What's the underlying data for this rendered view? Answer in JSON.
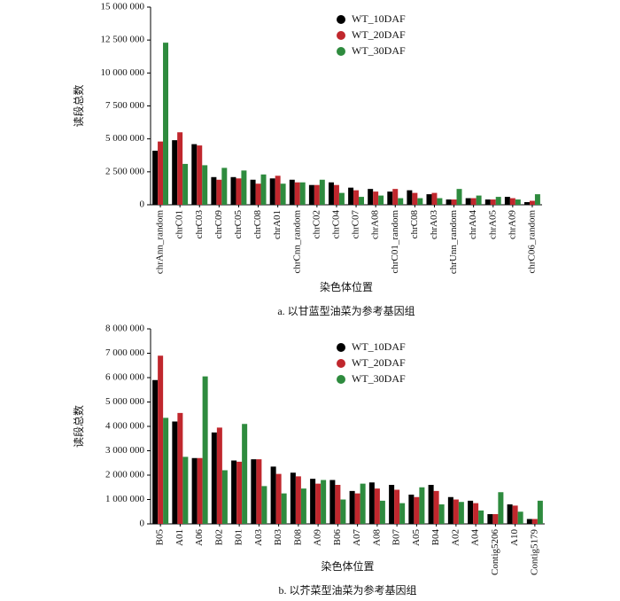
{
  "chart_data": [
    {
      "type": "bar",
      "ylabel": "读段总数",
      "xlabel": "染色体位置",
      "caption": "a. 以甘蓝型油菜为参考基因组",
      "categories": [
        "chrAnn_random",
        "chrC01",
        "chrC03",
        "chrC09",
        "chrC05",
        "chrC08",
        "chrA01",
        "chrCnn_random",
        "chrC02",
        "chrC04",
        "chrC07",
        "chrA08",
        "chrC01_random",
        "chrC08",
        "chrA03",
        "chrUnn_random",
        "chrA04",
        "chrA05",
        "chrA09",
        "chrC06_random"
      ],
      "series": [
        {
          "name": "WT_10DAF",
          "color": "#000000",
          "values": [
            4100000,
            4900000,
            4600000,
            2100000,
            2100000,
            1900000,
            2000000,
            1900000,
            1500000,
            1700000,
            1300000,
            1200000,
            1000000,
            1100000,
            800000,
            400000,
            500000,
            400000,
            600000,
            200000
          ]
        },
        {
          "name": "WT_20DAF",
          "color": "#c0272d",
          "values": [
            4800000,
            5500000,
            4500000,
            1900000,
            2000000,
            1600000,
            2200000,
            1700000,
            1500000,
            1500000,
            1100000,
            1000000,
            1200000,
            900000,
            900000,
            400000,
            500000,
            400000,
            500000,
            300000
          ]
        },
        {
          "name": "WT_30DAF",
          "color": "#2e8b3e",
          "values": [
            12300000,
            3100000,
            3000000,
            2800000,
            2600000,
            2300000,
            1600000,
            1700000,
            1900000,
            900000,
            600000,
            700000,
            500000,
            500000,
            500000,
            1200000,
            700000,
            600000,
            400000,
            800000
          ]
        }
      ],
      "ylim": [
        0,
        15000000
      ],
      "yticks": [
        0,
        {
          "value": 2500000,
          "label": "2 500 000"
        },
        {
          "value": 5000000,
          "label": "5 000 000"
        },
        {
          "value": 7500000,
          "label": "7 500 000"
        },
        {
          "value": 10000000,
          "label": "10 000 000"
        },
        {
          "value": 12500000,
          "label": "12 500 000"
        },
        {
          "value": 15000000,
          "label": "15 000 000"
        }
      ],
      "legend": "upper right"
    },
    {
      "type": "bar",
      "ylabel": "读段总数",
      "xlabel": "染色体位置",
      "caption": "b. 以芥菜型油菜为参考基因组",
      "categories": [
        "B05",
        "A01",
        "A06",
        "B02",
        "B01",
        "A03",
        "B03",
        "B08",
        "A09",
        "B06",
        "A07",
        "A08",
        "B07",
        "A05",
        "B04",
        "A02",
        "A04",
        "Contig5206",
        "A10",
        "Contig5179"
      ],
      "series": [
        {
          "name": "WT_10DAF",
          "color": "#000000",
          "values": [
            5900000,
            4200000,
            2700000,
            3750000,
            2600000,
            2650000,
            2350000,
            2100000,
            1850000,
            1800000,
            1350000,
            1700000,
            1600000,
            1200000,
            1600000,
            1100000,
            950000,
            400000,
            800000,
            200000
          ]
        },
        {
          "name": "WT_20DAF",
          "color": "#c0272d",
          "values": [
            6900000,
            4550000,
            2700000,
            3950000,
            2550000,
            2650000,
            2050000,
            1950000,
            1650000,
            1600000,
            1250000,
            1450000,
            1400000,
            1100000,
            1350000,
            1000000,
            850000,
            400000,
            750000,
            200000
          ]
        },
        {
          "name": "WT_30DAF",
          "color": "#2e8b3e",
          "values": [
            4350000,
            2750000,
            6050000,
            2200000,
            4100000,
            1550000,
            1250000,
            1450000,
            1800000,
            1000000,
            1650000,
            950000,
            850000,
            1500000,
            800000,
            900000,
            550000,
            1300000,
            500000,
            950000
          ]
        }
      ],
      "ylim": [
        0,
        8000000
      ],
      "yticks": [
        0,
        {
          "value": 1000000,
          "label": "1 000 000"
        },
        {
          "value": 2000000,
          "label": "2 000 000"
        },
        {
          "value": 3000000,
          "label": "3 000 000"
        },
        {
          "value": 4000000,
          "label": "4 000 000"
        },
        {
          "value": 5000000,
          "label": "5 000 000"
        },
        {
          "value": 6000000,
          "label": "6 000 000"
        },
        {
          "value": 7000000,
          "label": "7 000 000"
        },
        {
          "value": 8000000,
          "label": "8 000 000"
        }
      ],
      "legend": "upper right"
    }
  ]
}
